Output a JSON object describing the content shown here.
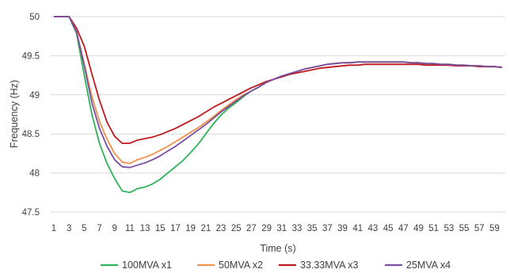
{
  "chart_data": {
    "type": "line",
    "xlabel": "Time (s)",
    "ylabel": "Frequency (Hz)",
    "xlim": [
      1,
      60
    ],
    "ylim": [
      47.5,
      50
    ],
    "y_ticks": [
      "47.5",
      "48",
      "48.5",
      "49",
      "49.5",
      "50"
    ],
    "x_tick_labels": [
      "1",
      "3",
      "5",
      "7",
      "9",
      "11",
      "13",
      "15",
      "17",
      "19",
      "21",
      "23",
      "25",
      "27",
      "29",
      "31",
      "33",
      "35",
      "37",
      "39",
      "41",
      "43",
      "45",
      "47",
      "49",
      "51",
      "53",
      "55",
      "57",
      "59"
    ],
    "grid": "horizontal",
    "legend_position": "bottom",
    "x": [
      1,
      2,
      3,
      4,
      5,
      6,
      7,
      8,
      9,
      10,
      11,
      12,
      13,
      14,
      15,
      16,
      17,
      18,
      19,
      20,
      21,
      22,
      23,
      24,
      25,
      26,
      27,
      28,
      29,
      30,
      31,
      32,
      33,
      34,
      35,
      36,
      37,
      38,
      39,
      40,
      41,
      42,
      43,
      44,
      45,
      46,
      47,
      48,
      49,
      50,
      51,
      52,
      53,
      54,
      55,
      56,
      57,
      58,
      59,
      60
    ],
    "series": [
      {
        "name": "100MVA x1",
        "color": "#2eb35a",
        "values": [
          50,
          50,
          50,
          49.78,
          49.25,
          48.75,
          48.38,
          48.12,
          47.93,
          47.77,
          47.75,
          47.8,
          47.82,
          47.86,
          47.92,
          48.0,
          48.08,
          48.16,
          48.26,
          48.37,
          48.5,
          48.63,
          48.74,
          48.83,
          48.9,
          48.98,
          49.05,
          49.1,
          49.16,
          49.2,
          49.24,
          49.27,
          49.3,
          49.33,
          49.35,
          49.37,
          49.39,
          49.4,
          49.41,
          49.41,
          49.42,
          49.42,
          49.42,
          49.42,
          49.42,
          49.42,
          49.42,
          49.41,
          49.41,
          49.4,
          49.4,
          49.39,
          49.39,
          49.38,
          49.38,
          49.37,
          49.37,
          49.36,
          49.36,
          49.35
        ]
      },
      {
        "name": "50MVA x2",
        "color": "#f0924a",
        "values": [
          50,
          50,
          50,
          49.8,
          49.4,
          48.98,
          48.66,
          48.43,
          48.25,
          48.14,
          48.12,
          48.17,
          48.2,
          48.24,
          48.29,
          48.34,
          48.4,
          48.46,
          48.52,
          48.58,
          48.65,
          48.72,
          48.8,
          48.87,
          48.94,
          49.0,
          49.05,
          49.1,
          49.16,
          49.2,
          49.24,
          49.27,
          49.3,
          49.33,
          49.35,
          49.37,
          49.39,
          49.4,
          49.41,
          49.41,
          49.42,
          49.42,
          49.42,
          49.42,
          49.42,
          49.42,
          49.42,
          49.41,
          49.41,
          49.4,
          49.4,
          49.39,
          49.39,
          49.38,
          49.38,
          49.37,
          49.37,
          49.36,
          49.36,
          49.35
        ]
      },
      {
        "name": "33.33MVA x3",
        "color": "#c0191c",
        "values": [
          50,
          50,
          50,
          49.85,
          49.62,
          49.27,
          48.93,
          48.65,
          48.47,
          48.38,
          48.38,
          48.42,
          48.44,
          48.46,
          48.49,
          48.53,
          48.57,
          48.62,
          48.67,
          48.72,
          48.78,
          48.84,
          48.89,
          48.94,
          48.99,
          49.04,
          49.09,
          49.13,
          49.17,
          49.2,
          49.23,
          49.26,
          49.28,
          49.3,
          49.32,
          49.34,
          49.35,
          49.36,
          49.37,
          49.38,
          49.38,
          49.39,
          49.39,
          49.39,
          49.39,
          49.39,
          49.39,
          49.39,
          49.39,
          49.38,
          49.38,
          49.38,
          49.38,
          49.37,
          49.37,
          49.37,
          49.36,
          49.36,
          49.36,
          49.35
        ]
      },
      {
        "name": "25MVA x4",
        "color": "#7a4fa3",
        "values": [
          50,
          50,
          50,
          49.8,
          49.37,
          48.9,
          48.57,
          48.34,
          48.17,
          48.08,
          48.07,
          48.1,
          48.13,
          48.17,
          48.22,
          48.28,
          48.34,
          48.41,
          48.48,
          48.55,
          48.62,
          48.7,
          48.78,
          48.85,
          48.92,
          48.99,
          49.05,
          49.1,
          49.16,
          49.2,
          49.24,
          49.27,
          49.3,
          49.33,
          49.35,
          49.37,
          49.39,
          49.4,
          49.41,
          49.41,
          49.42,
          49.42,
          49.42,
          49.42,
          49.42,
          49.42,
          49.42,
          49.41,
          49.41,
          49.4,
          49.4,
          49.39,
          49.39,
          49.38,
          49.38,
          49.37,
          49.37,
          49.36,
          49.36,
          49.35
        ]
      }
    ]
  }
}
